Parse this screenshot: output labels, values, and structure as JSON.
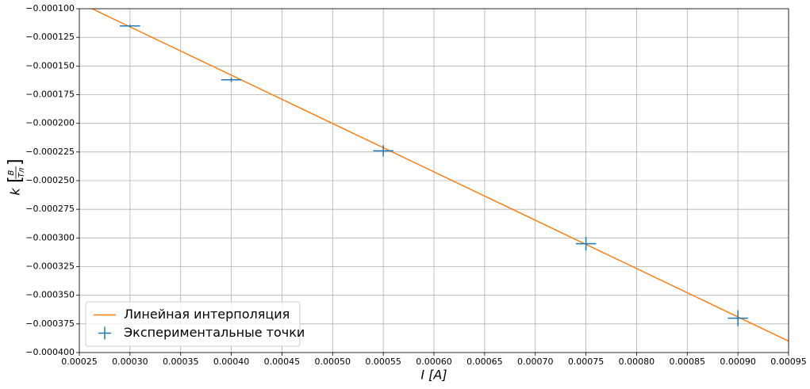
{
  "chart_data": {
    "type": "errorbar",
    "xlabel": "I [A]",
    "ylabel": {
      "symbol": "k",
      "numerator": "В",
      "denominator": "Тл"
    },
    "xlim": [
      0.00025,
      0.00095
    ],
    "ylim": [
      -0.0004,
      -0.0001
    ],
    "xticks": [
      {
        "value": 0.00025,
        "label": "0.00025"
      },
      {
        "value": 0.0003,
        "label": "0.00030"
      },
      {
        "value": 0.00035,
        "label": "0.00035"
      },
      {
        "value": 0.0004,
        "label": "0.00040"
      },
      {
        "value": 0.00045,
        "label": "0.00045"
      },
      {
        "value": 0.0005,
        "label": "0.00050"
      },
      {
        "value": 0.00055,
        "label": "0.00055"
      },
      {
        "value": 0.0006,
        "label": "0.00060"
      },
      {
        "value": 0.00065,
        "label": "0.00065"
      },
      {
        "value": 0.0007,
        "label": "0.00070"
      },
      {
        "value": 0.00075,
        "label": "0.00075"
      },
      {
        "value": 0.0008,
        "label": "0.00080"
      },
      {
        "value": 0.00085,
        "label": "0.00085"
      },
      {
        "value": 0.0009,
        "label": "0.00090"
      },
      {
        "value": 0.00095,
        "label": "0.00095"
      }
    ],
    "yticks": [
      {
        "value": -0.0001,
        "label": "−0.000100"
      },
      {
        "value": -0.000125,
        "label": "−0.000125"
      },
      {
        "value": -0.00015,
        "label": "−0.000150"
      },
      {
        "value": -0.000175,
        "label": "−0.000175"
      },
      {
        "value": -0.0002,
        "label": "−0.000200"
      },
      {
        "value": -0.000225,
        "label": "−0.000225"
      },
      {
        "value": -0.00025,
        "label": "−0.000250"
      },
      {
        "value": -0.000275,
        "label": "−0.000275"
      },
      {
        "value": -0.0003,
        "label": "−0.000300"
      },
      {
        "value": -0.000325,
        "label": "−0.000325"
      },
      {
        "value": -0.00035,
        "label": "−0.000350"
      },
      {
        "value": -0.000375,
        "label": "−0.000375"
      },
      {
        "value": -0.0004,
        "label": "−0.000400"
      }
    ],
    "grid": true,
    "legend": "lower left",
    "series": [
      {
        "name": "Линейная интерполяция",
        "kind": "line",
        "color": "#ff7f0e",
        "x": [
          0.0002625,
          0.00095
        ],
        "y": [
          -0.0001,
          -0.00039
        ]
      },
      {
        "name": "Экспериментальные точки",
        "kind": "errorbar",
        "color": "#1f77b4",
        "x": [
          0.0003,
          0.0004,
          0.00055,
          0.00075,
          0.0009
        ],
        "y": [
          -0.000115,
          -0.000162,
          -0.000224,
          -0.000305,
          -0.00037
        ],
        "xerr": [
          1e-05,
          1e-05,
          1e-05,
          1e-05,
          1e-05
        ],
        "yerr": [
          1e-06,
          2e-06,
          5e-06,
          6e-06,
          7e-06
        ]
      }
    ]
  }
}
